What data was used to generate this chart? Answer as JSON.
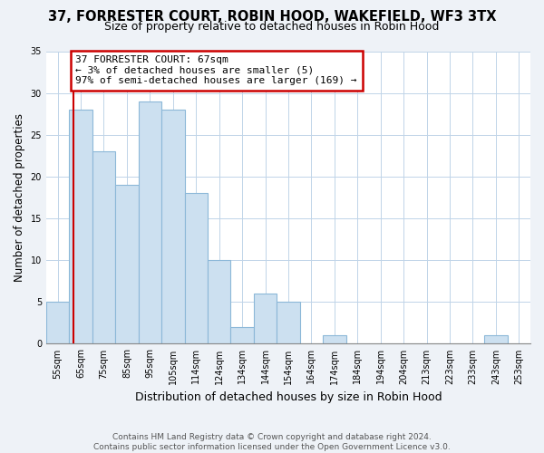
{
  "title": "37, FORRESTER COURT, ROBIN HOOD, WAKEFIELD, WF3 3TX",
  "subtitle": "Size of property relative to detached houses in Robin Hood",
  "xlabel": "Distribution of detached houses by size in Robin Hood",
  "ylabel": "Number of detached properties",
  "categories": [
    "55sqm",
    "65sqm",
    "75sqm",
    "85sqm",
    "95sqm",
    "105sqm",
    "114sqm",
    "124sqm",
    "134sqm",
    "144sqm",
    "154sqm",
    "164sqm",
    "174sqm",
    "184sqm",
    "194sqm",
    "204sqm",
    "213sqm",
    "223sqm",
    "233sqm",
    "243sqm",
    "253sqm"
  ],
  "values": [
    5,
    28,
    23,
    19,
    29,
    28,
    18,
    10,
    2,
    6,
    5,
    0,
    1,
    0,
    0,
    0,
    0,
    0,
    0,
    1,
    0
  ],
  "bar_color": "#cce0f0",
  "bar_edge_color": "#8cb8d8",
  "annotation_line1": "37 FORRESTER COURT: 67sqm",
  "annotation_line2": "← 3% of detached houses are smaller (5)",
  "annotation_line3": "97% of semi-detached houses are larger (169) →",
  "annotation_box_edge_color": "#cc0000",
  "ylim": [
    0,
    35
  ],
  "yticks": [
    0,
    5,
    10,
    15,
    20,
    25,
    30,
    35
  ],
  "footer_line1": "Contains HM Land Registry data © Crown copyright and database right 2024.",
  "footer_line2": "Contains public sector information licensed under the Open Government Licence v3.0.",
  "background_color": "#eef2f7",
  "plot_background_color": "#ffffff",
  "grid_color": "#c0d4e8",
  "title_fontsize": 10.5,
  "subtitle_fontsize": 9,
  "tick_fontsize": 7,
  "ylabel_fontsize": 8.5,
  "xlabel_fontsize": 9,
  "footer_fontsize": 6.5
}
